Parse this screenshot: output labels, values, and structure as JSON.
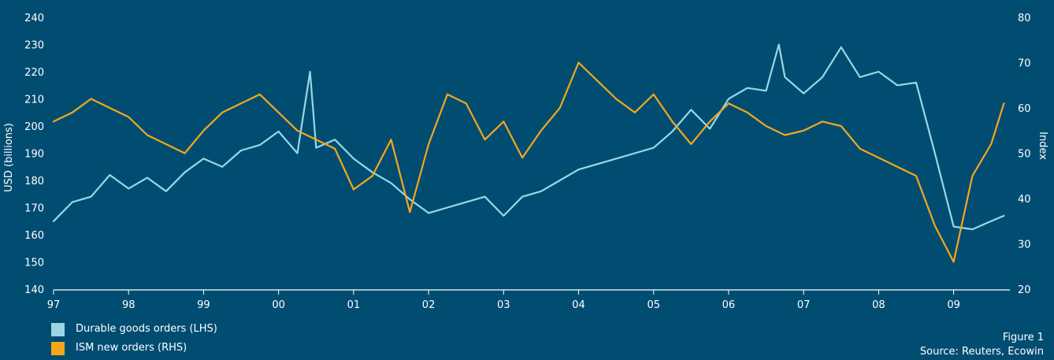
{
  "figure": {
    "label": "Figure 1",
    "source": "Source: Reuters, Ecowin"
  },
  "colors": {
    "background": "#014d72",
    "durable": "#9ad7e3",
    "ism": "#f4a71d",
    "axis": "#ffffff"
  },
  "chart_data": {
    "type": "line",
    "title": "",
    "xlabel": "",
    "ylabel_left": "USD (billions)",
    "ylabel_right": "Index",
    "x_ticks": [
      "97",
      "98",
      "99",
      "00",
      "01",
      "02",
      "03",
      "04",
      "05",
      "06",
      "07",
      "08",
      "09"
    ],
    "y_left": {
      "min": 140,
      "max": 240,
      "ticks": [
        140,
        150,
        160,
        170,
        180,
        190,
        200,
        210,
        220,
        230,
        240
      ]
    },
    "y_right": {
      "min": 20,
      "max": 80,
      "ticks": [
        20,
        30,
        40,
        50,
        60,
        70,
        80
      ]
    },
    "x_range": [
      1997.0,
      2009.75
    ],
    "grid": false,
    "legend_position": "bottom-left",
    "series": [
      {
        "name": "Durable goods orders (LHS)",
        "axis": "left",
        "color": "#9ad7e3",
        "x": [
          1997.0,
          1997.25,
          1997.5,
          1997.75,
          1998.0,
          1998.25,
          1998.5,
          1998.75,
          1999.0,
          1999.25,
          1999.5,
          1999.75,
          2000.0,
          2000.25,
          2000.42,
          2000.5,
          2000.75,
          2001.0,
          2001.25,
          2001.5,
          2001.75,
          2002.0,
          2002.25,
          2002.5,
          2002.75,
          2003.0,
          2003.25,
          2003.5,
          2003.75,
          2004.0,
          2004.25,
          2004.5,
          2004.75,
          2005.0,
          2005.25,
          2005.5,
          2005.75,
          2006.0,
          2006.25,
          2006.5,
          2006.67,
          2006.75,
          2007.0,
          2007.25,
          2007.5,
          2007.75,
          2008.0,
          2008.25,
          2008.5,
          2008.75,
          2009.0,
          2009.25,
          2009.5,
          2009.67
        ],
        "values": [
          165,
          172,
          174,
          182,
          177,
          181,
          176,
          183,
          188,
          185,
          191,
          193,
          198,
          190,
          220,
          192,
          195,
          188,
          183,
          179,
          173,
          168,
          170,
          172,
          174,
          167,
          174,
          176,
          180,
          184,
          186,
          188,
          190,
          192,
          198,
          206,
          199,
          210,
          214,
          213,
          230,
          218,
          212,
          218,
          229,
          218,
          220,
          215,
          216,
          190,
          163,
          162,
          165,
          167
        ]
      },
      {
        "name": "ISM new orders (RHS)",
        "axis": "right",
        "color": "#f4a71d",
        "x": [
          1997.0,
          1997.25,
          1997.5,
          1997.75,
          1998.0,
          1998.25,
          1998.5,
          1998.75,
          1999.0,
          1999.25,
          1999.5,
          1999.75,
          2000.0,
          2000.25,
          2000.5,
          2000.75,
          2001.0,
          2001.25,
          2001.5,
          2001.75,
          2002.0,
          2002.25,
          2002.5,
          2002.75,
          2003.0,
          2003.25,
          2003.5,
          2003.75,
          2004.0,
          2004.25,
          2004.5,
          2004.75,
          2005.0,
          2005.25,
          2005.5,
          2005.75,
          2006.0,
          2006.25,
          2006.5,
          2006.75,
          2007.0,
          2007.25,
          2007.5,
          2007.75,
          2008.0,
          2008.25,
          2008.5,
          2008.75,
          2009.0,
          2009.25,
          2009.5,
          2009.67
        ],
        "values": [
          57,
          59,
          62,
          60,
          58,
          54,
          52,
          50,
          55,
          59,
          61,
          63,
          59,
          55,
          53,
          51,
          42,
          45,
          53,
          37,
          52,
          63,
          61,
          53,
          57,
          49,
          55,
          60,
          70,
          66,
          62,
          59,
          63,
          57,
          52,
          57,
          61,
          59,
          56,
          54,
          55,
          57,
          56,
          51,
          49,
          47,
          45,
          34,
          26,
          45,
          52,
          61
        ]
      }
    ]
  }
}
